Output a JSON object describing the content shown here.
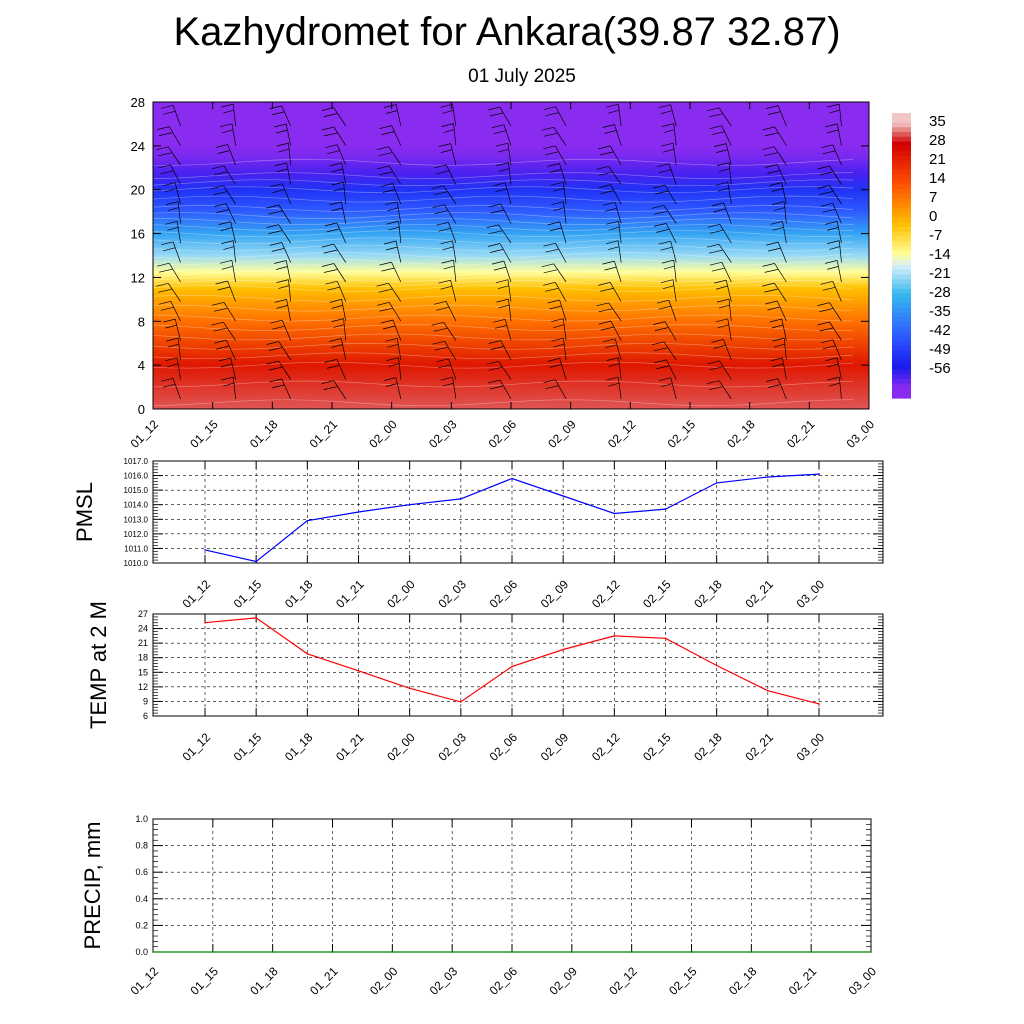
{
  "header": {
    "title": "Kazhydromet for Ankara(39.87 32.87)",
    "subtitle": "01 July 2025"
  },
  "chart_data": [
    {
      "type": "heatmap",
      "panel": "cross-section",
      "x_labels": [
        "01_12",
        "01_15",
        "01_18",
        "01_21",
        "02_00",
        "02_03",
        "02_06",
        "02_09",
        "02_12",
        "02_15",
        "02_18",
        "02_21",
        "03_00"
      ],
      "y_ticks": [
        "0",
        "4",
        "8",
        "12",
        "16",
        "20",
        "24",
        "28"
      ],
      "ylim": [
        0,
        28
      ],
      "colorbar": {
        "labels": [
          "35",
          "28",
          "21",
          "14",
          "7",
          "0",
          "-7",
          "-14",
          "-21",
          "-28",
          "-35",
          "-42",
          "-49",
          "-56"
        ],
        "stops": [
          {
            "v": 35,
            "color": "#f2c6c6"
          },
          {
            "v": 28,
            "color": "#d20000"
          },
          {
            "v": 14,
            "color": "#ff5000"
          },
          {
            "v": 0,
            "color": "#ffc000"
          },
          {
            "v": -10,
            "color": "#ffff99"
          },
          {
            "v": -14,
            "color": "#d8f0f8"
          },
          {
            "v": -24,
            "color": "#35b8f0"
          },
          {
            "v": -38,
            "color": "#2e5bff"
          },
          {
            "v": -49,
            "color": "#1a1aef"
          },
          {
            "v": -56,
            "color": "#8a2bf0"
          }
        ]
      },
      "profile": [
        {
          "y": 0,
          "v": 31
        },
        {
          "y": 4,
          "v": 24
        },
        {
          "y": 8,
          "v": 10
        },
        {
          "y": 11,
          "v": 0
        },
        {
          "y": 12.5,
          "v": -10
        },
        {
          "y": 14,
          "v": -18
        },
        {
          "y": 16,
          "v": -27
        },
        {
          "y": 18,
          "v": -38
        },
        {
          "y": 20,
          "v": -45
        },
        {
          "y": 21.5,
          "v": -52
        },
        {
          "y": 23,
          "v": -55
        },
        {
          "y": 24,
          "v": -56
        },
        {
          "y": 28,
          "v": -56
        }
      ],
      "grid": true
    },
    {
      "type": "line",
      "ylabel": "PMSL",
      "x": [
        "01_12",
        "01_15",
        "01_18",
        "01_21",
        "02_00",
        "02_03",
        "02_06",
        "02_09",
        "02_12",
        "02_15",
        "02_18",
        "02_21",
        "03_00"
      ],
      "y_ticks": [
        "1010.0",
        "1011.0",
        "1012.0",
        "1013.0",
        "1014.0",
        "1015.0",
        "1016.0",
        "1017.0"
      ],
      "ylim": [
        1010,
        1017
      ],
      "series": [
        {
          "values": [
            1010.9,
            1010.1,
            1012.9,
            1013.5,
            1014.0,
            1014.4,
            1015.8,
            1014.6,
            1013.4,
            1013.7,
            1015.5,
            1015.9,
            1016.1
          ],
          "color": "#0000ff"
        }
      ],
      "grid": true
    },
    {
      "type": "line",
      "ylabel": "TEMP at 2 M",
      "x": [
        "01_12",
        "01_15",
        "01_18",
        "01_21",
        "02_00",
        "02_03",
        "02_06",
        "02_09",
        "02_12",
        "02_15",
        "02_18",
        "02_21",
        "03_00"
      ],
      "y_ticks": [
        "6",
        "9",
        "12",
        "15",
        "18",
        "21",
        "24",
        "27"
      ],
      "ylim": [
        6,
        27
      ],
      "series": [
        {
          "values": [
            25.2,
            26.2,
            18.8,
            15.3,
            11.7,
            8.9,
            16.2,
            19.7,
            22.5,
            22.0,
            16.4,
            11.2,
            8.5
          ],
          "color": "#ff0000"
        }
      ],
      "grid": true
    },
    {
      "type": "line",
      "ylabel": "PRECIP, mm",
      "x_labels": [
        "01_12",
        "01_15",
        "01_18",
        "01_21",
        "02_00",
        "02_03",
        "02_06",
        "02_09",
        "02_12",
        "02_15",
        "02_18",
        "02_21",
        "03_00"
      ],
      "y_ticks": [
        "0.0",
        "0.2",
        "0.4",
        "0.6",
        "0.8",
        "1.0"
      ],
      "ylim": [
        0,
        1
      ],
      "series": [
        {
          "values": [
            0,
            0,
            0,
            0,
            0,
            0,
            0,
            0,
            0,
            0,
            0,
            0,
            0
          ],
          "color": "#008000"
        }
      ],
      "grid": true
    }
  ]
}
